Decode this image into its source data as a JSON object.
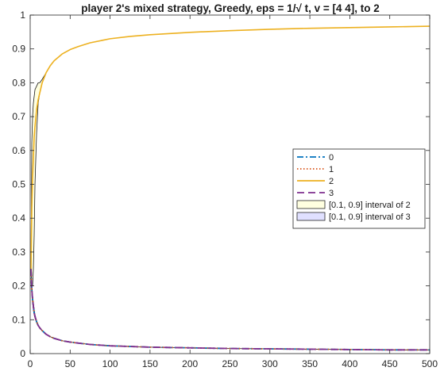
{
  "chart_data": {
    "type": "line",
    "title": "player 2's mixed strategy, Greedy, eps = 1/√ t, v = [4  4], to 2",
    "xlabel": "",
    "ylabel": "",
    "xlim": [
      0,
      500
    ],
    "ylim": [
      0,
      1
    ],
    "xticks": [
      0,
      50,
      100,
      150,
      200,
      250,
      300,
      350,
      400,
      450,
      500
    ],
    "yticks": [
      0,
      0.1,
      0.2,
      0.3,
      0.4,
      0.5,
      0.6,
      0.7,
      0.8,
      0.9,
      1
    ],
    "grid": false,
    "legend_location": "right",
    "x": [
      1,
      2,
      3,
      4,
      5,
      6,
      8,
      10,
      12,
      15,
      20,
      25,
      30,
      40,
      50,
      60,
      75,
      100,
      125,
      150,
      200,
      250,
      300,
      350,
      400,
      450,
      500
    ],
    "series": [
      {
        "name": "0",
        "style": "dash-dot",
        "color": "#0072BD",
        "values": [
          0.25,
          0.19,
          0.16,
          0.14,
          0.12,
          0.11,
          0.094,
          0.083,
          0.076,
          0.068,
          0.057,
          0.05,
          0.045,
          0.038,
          0.034,
          0.031,
          0.027,
          0.023,
          0.021,
          0.019,
          0.017,
          0.015,
          0.014,
          0.013,
          0.012,
          0.011,
          0.011
        ]
      },
      {
        "name": "1",
        "style": "dotted",
        "color": "#D95319",
        "values": [
          0.25,
          0.19,
          0.16,
          0.14,
          0.12,
          0.11,
          0.094,
          0.083,
          0.076,
          0.068,
          0.057,
          0.05,
          0.045,
          0.038,
          0.034,
          0.031,
          0.027,
          0.023,
          0.021,
          0.019,
          0.017,
          0.015,
          0.014,
          0.013,
          0.012,
          0.011,
          0.011
        ]
      },
      {
        "name": "2",
        "style": "solid",
        "color": "#EDB120",
        "values": [
          0.25,
          0.43,
          0.52,
          0.58,
          0.64,
          0.67,
          0.72,
          0.75,
          0.77,
          0.8,
          0.83,
          0.85,
          0.865,
          0.885,
          0.898,
          0.907,
          0.918,
          0.93,
          0.937,
          0.942,
          0.949,
          0.954,
          0.958,
          0.961,
          0.963,
          0.965,
          0.967
        ]
      },
      {
        "name": "3",
        "style": "dashed",
        "color": "#7E2F8E",
        "values": [
          0.25,
          0.19,
          0.16,
          0.14,
          0.12,
          0.11,
          0.094,
          0.083,
          0.076,
          0.068,
          0.057,
          0.05,
          0.045,
          0.038,
          0.034,
          0.031,
          0.027,
          0.023,
          0.021,
          0.019,
          0.017,
          0.015,
          0.014,
          0.013,
          0.012,
          0.011,
          0.011
        ]
      }
    ],
    "bands": [
      {
        "name": "[0.1, 0.9] interval of 2",
        "fill": "#FFFFE0",
        "edge": "#1a1a1a",
        "x": [
          1,
          2,
          3,
          4,
          5,
          6,
          8,
          10,
          12,
          15,
          20,
          25,
          30,
          40,
          50,
          60,
          75,
          100,
          125,
          150,
          200,
          250,
          300,
          350,
          400,
          450,
          500
        ],
        "lower": [
          0.25,
          0.2,
          0.2,
          0.25,
          0.35,
          0.5,
          0.65,
          0.74,
          0.77,
          0.8,
          0.83,
          0.85,
          0.865,
          0.885,
          0.898,
          0.907,
          0.918,
          0.93,
          0.937,
          0.942,
          0.949,
          0.954,
          0.958,
          0.961,
          0.963,
          0.965,
          0.967
        ],
        "upper": [
          0.25,
          0.62,
          0.7,
          0.74,
          0.76,
          0.78,
          0.79,
          0.8,
          0.8,
          0.81,
          0.83,
          0.85,
          0.865,
          0.885,
          0.898,
          0.907,
          0.918,
          0.93,
          0.937,
          0.942,
          0.949,
          0.954,
          0.958,
          0.961,
          0.963,
          0.965,
          0.967
        ]
      },
      {
        "name": "[0.1, 0.9] interval of 3",
        "fill": "#E0E0FF",
        "edge": "#1a1a1a",
        "x": [
          1,
          2,
          3,
          4,
          5,
          6,
          8,
          10,
          12,
          15,
          20,
          25,
          30,
          40,
          50,
          60,
          75,
          100,
          125,
          150,
          200,
          250,
          300,
          350,
          400,
          450,
          500
        ],
        "lower": [
          0.25,
          0.18,
          0.15,
          0.13,
          0.115,
          0.105,
          0.092,
          0.082,
          0.075,
          0.068,
          0.057,
          0.05,
          0.045,
          0.038,
          0.034,
          0.031,
          0.027,
          0.023,
          0.021,
          0.019,
          0.017,
          0.015,
          0.014,
          0.013,
          0.012,
          0.011,
          0.011
        ],
        "upper": [
          0.25,
          0.2,
          0.17,
          0.15,
          0.13,
          0.115,
          0.097,
          0.085,
          0.077,
          0.068,
          0.057,
          0.05,
          0.045,
          0.038,
          0.034,
          0.031,
          0.027,
          0.023,
          0.021,
          0.019,
          0.017,
          0.015,
          0.014,
          0.013,
          0.012,
          0.011,
          0.011
        ]
      }
    ],
    "legend": [
      {
        "label": "0",
        "kind": "line",
        "style": "dash-dot",
        "color": "#0072BD"
      },
      {
        "label": "1",
        "kind": "line",
        "style": "dotted",
        "color": "#D95319"
      },
      {
        "label": "2",
        "kind": "line",
        "style": "solid",
        "color": "#EDB120"
      },
      {
        "label": "3",
        "kind": "line",
        "style": "dashed",
        "color": "#7E2F8E"
      },
      {
        "label": "[0.1, 0.9] interval of 2",
        "kind": "patch",
        "color": "#FFFFE0"
      },
      {
        "label": "[0.1, 0.9] interval of 3",
        "kind": "patch",
        "color": "#E0E0FF"
      }
    ]
  }
}
